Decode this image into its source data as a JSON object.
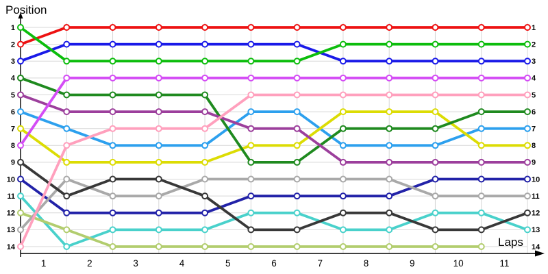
{
  "colors": {
    "background": "#ffffff",
    "grid": "#d7d7d7",
    "axis": "#000000",
    "text": "#000000",
    "marker_fill": "#ffffff"
  },
  "chart_data": {
    "type": "line",
    "title": "Position",
    "xlabel": "Laps",
    "ylabel": "Position",
    "x_tick_labels": [
      "1",
      "2",
      "3",
      "4",
      "5",
      "6",
      "7",
      "8",
      "9",
      "10",
      "11"
    ],
    "left_labels": [
      "1",
      "2",
      "3",
      "4",
      "5",
      "6",
      "7",
      "8",
      "9",
      "10",
      "11",
      "12",
      "13",
      "14"
    ],
    "right_labels": [
      "1",
      "2",
      "3",
      "4",
      "5",
      "6",
      "7",
      "8",
      "9",
      "10",
      "11",
      "12",
      "13",
      "14"
    ],
    "y_range": [
      1,
      14
    ],
    "y_inverted": true,
    "columns": 12,
    "grid": true,
    "legend_position": "none",
    "marker": "open-circle",
    "series": [
      {
        "name": "green",
        "color": "#0cbd0c",
        "positions": [
          1,
          3,
          3,
          3,
          3,
          3,
          3,
          2,
          2,
          2,
          2,
          2
        ]
      },
      {
        "name": "red",
        "color": "#ed1212",
        "positions": [
          2,
          1,
          1,
          1,
          1,
          1,
          1,
          1,
          1,
          1,
          1,
          1
        ]
      },
      {
        "name": "blue",
        "color": "#1a1ae8",
        "positions": [
          3,
          2,
          2,
          2,
          2,
          2,
          2,
          3,
          3,
          3,
          3,
          3
        ]
      },
      {
        "name": "dark-green",
        "color": "#1f8a1f",
        "positions": [
          4,
          5,
          5,
          5,
          5,
          9,
          9,
          7,
          7,
          7,
          6,
          6
        ]
      },
      {
        "name": "purple",
        "color": "#9c3f9c",
        "positions": [
          5,
          6,
          6,
          6,
          6,
          7,
          7,
          9,
          9,
          9,
          9,
          9
        ]
      },
      {
        "name": "sky-blue",
        "color": "#2da0ee",
        "positions": [
          6,
          7,
          8,
          8,
          8,
          6,
          6,
          8,
          8,
          8,
          7,
          7
        ]
      },
      {
        "name": "yellow",
        "color": "#dcdc04",
        "positions": [
          7,
          9,
          9,
          9,
          9,
          8,
          8,
          6,
          6,
          6,
          8,
          8
        ]
      },
      {
        "name": "violet",
        "color": "#d44df5",
        "positions": [
          8,
          4,
          4,
          4,
          4,
          4,
          4,
          4,
          4,
          4,
          4,
          4
        ]
      },
      {
        "name": "black",
        "color": "#383838",
        "positions": [
          9,
          11,
          10,
          10,
          11,
          13,
          13,
          12,
          12,
          13,
          13,
          12
        ]
      },
      {
        "name": "navy",
        "color": "#2222a8",
        "positions": [
          10,
          12,
          12,
          12,
          12,
          11,
          11,
          11,
          11,
          10,
          10,
          10
        ]
      },
      {
        "name": "cyan",
        "color": "#49d1cb",
        "positions": [
          11,
          14,
          13,
          13,
          13,
          12,
          12,
          13,
          13,
          12,
          12,
          13
        ]
      },
      {
        "name": "yellow-green",
        "color": "#b2cd6e",
        "positions": [
          12,
          13,
          14,
          14,
          14,
          14,
          14,
          14,
          14,
          14,
          14,
          null
        ]
      },
      {
        "name": "gray",
        "color": "#a9a9a9",
        "positions": [
          13,
          10,
          11,
          11,
          10,
          10,
          10,
          10,
          10,
          11,
          11,
          11
        ]
      },
      {
        "name": "pink",
        "color": "#ffa0bd",
        "positions": [
          14,
          8,
          7,
          7,
          7,
          5,
          5,
          5,
          5,
          5,
          5,
          5
        ]
      }
    ],
    "draw_order": [
      "red",
      "blue",
      "navy",
      "cyan",
      "yellow-green",
      "gray",
      "black",
      "sky-blue",
      "yellow",
      "dark-green",
      "purple",
      "violet",
      "pink",
      "green"
    ]
  }
}
